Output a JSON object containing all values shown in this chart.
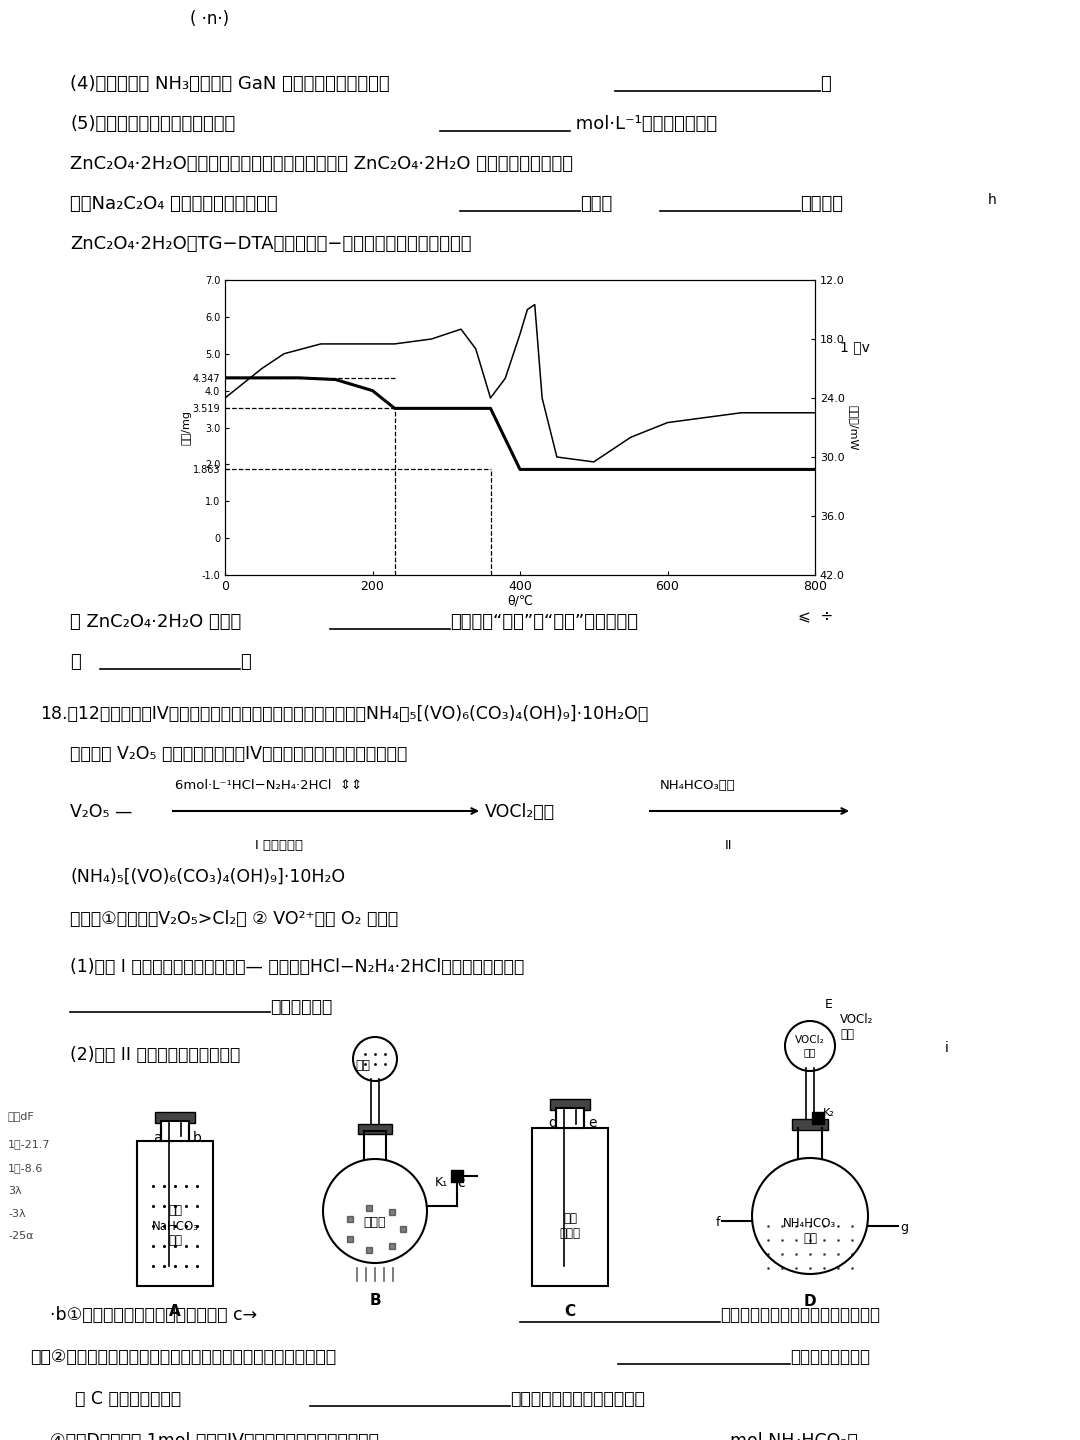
{
  "background_color": "#ffffff",
  "page_width": 10.8,
  "page_height": 14.4,
  "dpi": 100,
  "tg_x": [
    0,
    50,
    100,
    150,
    200,
    230,
    280,
    320,
    340,
    360,
    400,
    450,
    500,
    600,
    700,
    800
  ],
  "tg_y": [
    4.347,
    4.347,
    4.347,
    4.3,
    4.0,
    3.519,
    3.519,
    3.519,
    3.519,
    3.519,
    1.863,
    1.863,
    1.863,
    1.863,
    1.863,
    1.863
  ],
  "dta_x": [
    0,
    50,
    80,
    130,
    180,
    230,
    280,
    300,
    320,
    340,
    360,
    380,
    400,
    410,
    420,
    430,
    450,
    500,
    550,
    600,
    700,
    800
  ],
  "dta_y": [
    24.0,
    21.0,
    19.5,
    18.5,
    18.5,
    18.5,
    18.0,
    17.5,
    17.0,
    19.0,
    24.0,
    22.0,
    17.5,
    15.0,
    14.5,
    24.0,
    30.0,
    30.5,
    28.0,
    26.5,
    25.5,
    25.5
  ],
  "yticks_left": [
    -1.0,
    0,
    1.0,
    1.863,
    2.0,
    3.0,
    3.519,
    4.0,
    4.347,
    5.0,
    6.0,
    7.0
  ],
  "ytick_labels_left": [
    "-1.0",
    "0",
    "1.0",
    "1.863",
    "2.0",
    "3.0",
    "3.519",
    "4.0",
    "4.347",
    "5.0",
    "6.0",
    "7.0"
  ],
  "yticks_right": [
    12.0,
    18.0,
    24.0,
    30.0,
    36.0,
    42.0
  ],
  "ytick_labels_right": [
    "12.0",
    "18.0",
    "24.0",
    "30.0",
    "36.0",
    "42.0"
  ],
  "xticks": [
    0,
    200,
    400,
    600,
    800
  ],
  "xtick_labels": [
    "0",
    "200",
    "400",
    "600",
    "800"
  ]
}
